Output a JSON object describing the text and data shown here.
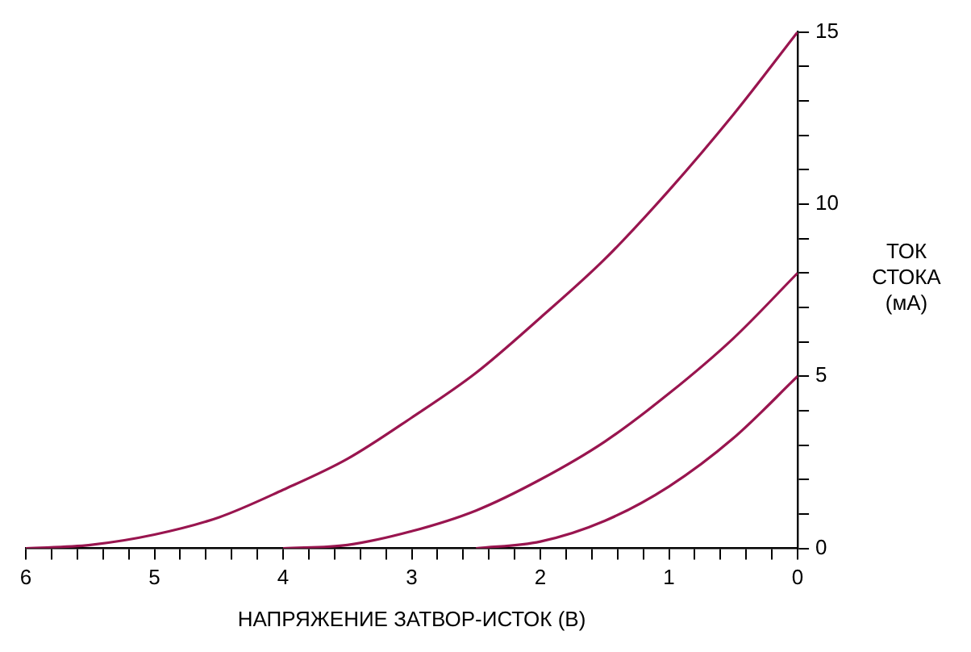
{
  "chart_data": {
    "type": "line",
    "xlabel": "НАПРЯЖЕНИЕ ЗАТВОР-ИСТОК (В)",
    "ylabel": "ТОК СТОКА (мА)",
    "xlim": [
      6,
      0
    ],
    "ylim": [
      0,
      15
    ],
    "xticks": [
      0,
      {
        "value": 0.2,
        "label": null
      },
      {
        "value": 0.4,
        "label": null
      },
      {
        "value": 0.6,
        "label": null
      },
      {
        "value": 0.8,
        "label": null
      },
      1,
      {
        "value": 1.2,
        "label": null
      },
      {
        "value": 1.4,
        "label": null
      },
      {
        "value": 1.6,
        "label": null
      },
      {
        "value": 1.8,
        "label": null
      },
      2,
      {
        "value": 2.2,
        "label": null
      },
      {
        "value": 2.4,
        "label": null
      },
      {
        "value": 2.6,
        "label": null
      },
      {
        "value": 2.8,
        "label": null
      },
      3,
      {
        "value": 3.2,
        "label": null
      },
      {
        "value": 3.4,
        "label": null
      },
      {
        "value": 3.6,
        "label": null
      },
      {
        "value": 3.8,
        "label": null
      },
      4,
      {
        "value": 4.2,
        "label": null
      },
      {
        "value": 4.4,
        "label": null
      },
      {
        "value": 4.6,
        "label": null
      },
      {
        "value": 4.8,
        "label": null
      },
      5,
      {
        "value": 5.2,
        "label": null
      },
      {
        "value": 5.4,
        "label": null
      },
      {
        "value": 5.6,
        "label": null
      },
      {
        "value": 5.8,
        "label": null
      },
      6
    ],
    "yticks": [
      0,
      {
        "value": 1,
        "label": null
      },
      {
        "value": 2,
        "label": null
      },
      {
        "value": 3,
        "label": null
      },
      {
        "value": 4,
        "label": null
      },
      5,
      {
        "value": 6,
        "label": null
      },
      {
        "value": 7,
        "label": null
      },
      {
        "value": 8,
        "label": null
      },
      {
        "value": 9,
        "label": null
      },
      10,
      {
        "value": 11,
        "label": null
      },
      {
        "value": 12,
        "label": null
      },
      {
        "value": 13,
        "label": null
      },
      {
        "value": 14,
        "label": null
      },
      15
    ],
    "grid": false,
    "legend": false,
    "marker": "none",
    "line_style": "solid",
    "series": [
      {
        "color": "#99154f",
        "x": [
          6,
          5.5,
          5,
          4.5,
          4,
          3.5,
          3,
          2.5,
          2,
          1.5,
          1,
          0.5,
          0
        ],
        "values": [
          0,
          0.1,
          0.4,
          0.9,
          1.7,
          2.6,
          3.8,
          5.1,
          6.7,
          8.4,
          10.4,
          12.6,
          15
        ]
      },
      {
        "color": "#99154f",
        "x": [
          4,
          3.5,
          3,
          2.5,
          2,
          1.5,
          1,
          0.5,
          0
        ],
        "values": [
          0,
          0.1,
          0.5,
          1.1,
          2,
          3.1,
          4.5,
          6.1,
          8
        ]
      },
      {
        "color": "#99154f",
        "x": [
          2.5,
          2,
          1.5,
          1,
          0.5,
          0
        ],
        "values": [
          0,
          0.2,
          0.8,
          1.8,
          3.2,
          5
        ]
      }
    ]
  }
}
